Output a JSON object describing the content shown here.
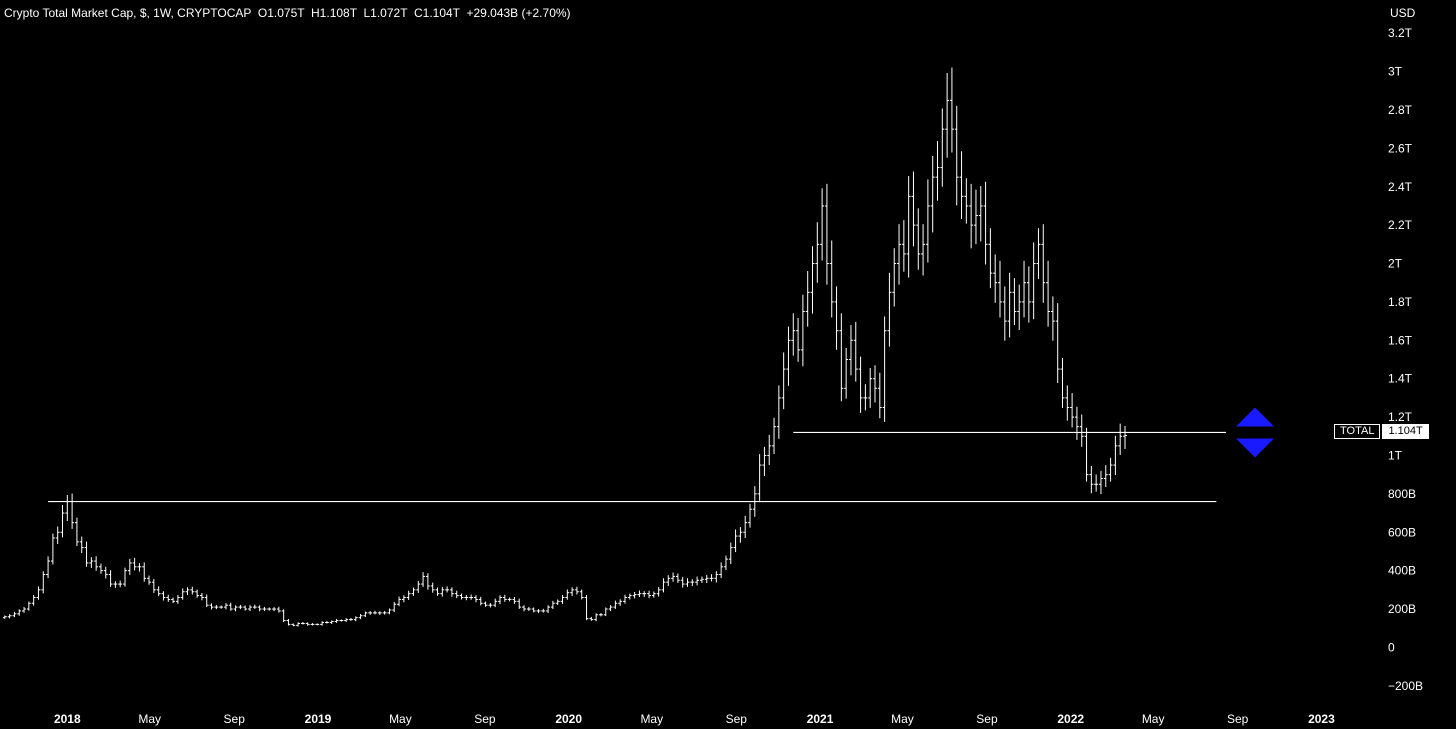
{
  "header": {
    "legend": "Crypto Total Market Cap, $, 1W, CRYPTOCAP  O1.075T  H1.108T  L1.072T  C1.104T  +29.043B (+2.70%)"
  },
  "currency": "USD",
  "price_tag": {
    "name": "TOTAL",
    "value": "1.104T"
  },
  "colors": {
    "background": "#000000",
    "bars": "#ffffff",
    "arrows": "#1a1aff"
  },
  "chart_data": {
    "type": "ohlc",
    "ylim": [
      -300,
      3300
    ],
    "y_ticks": [
      {
        "v": 3200,
        "label": "3.2T"
      },
      {
        "v": 3000,
        "label": "3T"
      },
      {
        "v": 2800,
        "label": "2.8T"
      },
      {
        "v": 2600,
        "label": "2.6T"
      },
      {
        "v": 2400,
        "label": "2.4T"
      },
      {
        "v": 2200,
        "label": "2.2T"
      },
      {
        "v": 2000,
        "label": "2T"
      },
      {
        "v": 1800,
        "label": "1.8T"
      },
      {
        "v": 1600,
        "label": "1.6T"
      },
      {
        "v": 1400,
        "label": "1.4T"
      },
      {
        "v": 1200,
        "label": "1.2T"
      },
      {
        "v": 1000,
        "label": "1T"
      },
      {
        "v": 800,
        "label": "800B"
      },
      {
        "v": 600,
        "label": "600B"
      },
      {
        "v": 400,
        "label": "400B"
      },
      {
        "v": 200,
        "label": "200B"
      },
      {
        "v": 0,
        "label": "0"
      },
      {
        "v": -200,
        "label": "−200B"
      }
    ],
    "x_ticks": [
      {
        "date": "2018-01-01",
        "label": "2018",
        "bold": true
      },
      {
        "date": "2018-05-01",
        "label": "May",
        "bold": false
      },
      {
        "date": "2018-09-01",
        "label": "Sep",
        "bold": false
      },
      {
        "date": "2019-01-01",
        "label": "2019",
        "bold": true
      },
      {
        "date": "2019-05-01",
        "label": "May",
        "bold": false
      },
      {
        "date": "2019-09-01",
        "label": "Sep",
        "bold": false
      },
      {
        "date": "2020-01-01",
        "label": "2020",
        "bold": true
      },
      {
        "date": "2020-05-01",
        "label": "May",
        "bold": false
      },
      {
        "date": "2020-09-01",
        "label": "Sep",
        "bold": false
      },
      {
        "date": "2021-01-01",
        "label": "2021",
        "bold": true
      },
      {
        "date": "2021-05-01",
        "label": "May",
        "bold": false
      },
      {
        "date": "2021-09-01",
        "label": "Sep",
        "bold": false
      },
      {
        "date": "2022-01-01",
        "label": "2022",
        "bold": true
      },
      {
        "date": "2022-05-01",
        "label": "May",
        "bold": false
      },
      {
        "date": "2022-09-01",
        "label": "Sep",
        "bold": false
      },
      {
        "date": "2023-01-01",
        "label": "2023",
        "bold": true
      }
    ],
    "xlim": [
      "2017-09-25",
      "2023-03-20"
    ],
    "bar_interval_days": 7,
    "first_bar_date": "2017-10-02",
    "closes": [
      160,
      165,
      175,
      190,
      200,
      230,
      260,
      300,
      380,
      450,
      570,
      600,
      700,
      760,
      650,
      550,
      520,
      440,
      450,
      420,
      400,
      380,
      330,
      330,
      330,
      400,
      440,
      420,
      420,
      360,
      340,
      300,
      280,
      260,
      250,
      240,
      260,
      290,
      300,
      290,
      270,
      260,
      220,
      210,
      210,
      210,
      220,
      200,
      210,
      210,
      200,
      210,
      210,
      200,
      200,
      200,
      200,
      190,
      140,
      120,
      115,
      125,
      125,
      120,
      120,
      120,
      130,
      130,
      135,
      140,
      140,
      145,
      145,
      155,
      165,
      180,
      180,
      180,
      180,
      180,
      195,
      225,
      250,
      260,
      280,
      300,
      330,
      370,
      320,
      300,
      280,
      300,
      300,
      280,
      270,
      260,
      260,
      260,
      250,
      230,
      220,
      220,
      240,
      260,
      250,
      250,
      240,
      210,
      200,
      200,
      190,
      190,
      190,
      210,
      230,
      240,
      260,
      285,
      300,
      290,
      260,
      150,
      145,
      170,
      170,
      200,
      210,
      230,
      240,
      260,
      270,
      275,
      280,
      280,
      270,
      280,
      300,
      340,
      360,
      370,
      350,
      330,
      340,
      340,
      350,
      355,
      360,
      360,
      380,
      420,
      460,
      520,
      580,
      600,
      650,
      720,
      800,
      950,
      1000,
      1050,
      1150,
      1300,
      1450,
      1600,
      1650,
      1550,
      1750,
      1850,
      2000,
      2100,
      2300,
      2000,
      1800,
      1650,
      1350,
      1500,
      1600,
      1450,
      1300,
      1300,
      1400,
      1350,
      1250,
      1650,
      1850,
      2000,
      2100,
      2050,
      2350,
      2200,
      2050,
      2100,
      2300,
      2450,
      2500,
      2700,
      2850,
      2700,
      2450,
      2350,
      2300,
      2200,
      2250,
      2300,
      2100,
      1950,
      1900,
      1800,
      1700,
      1850,
      1750,
      1800,
      1900,
      1800,
      2000,
      2100,
      1900,
      1750,
      1700,
      1450,
      1300,
      1250,
      1200,
      1150,
      1100,
      900,
      850,
      850,
      880,
      900,
      950,
      1050,
      1100,
      1104
    ],
    "levels": [
      {
        "value": 1120,
        "from": "2020-11-23",
        "to": "2022-08-15"
      },
      {
        "value": 760,
        "from": "2017-12-04",
        "to": "2022-08-01"
      }
    ]
  }
}
